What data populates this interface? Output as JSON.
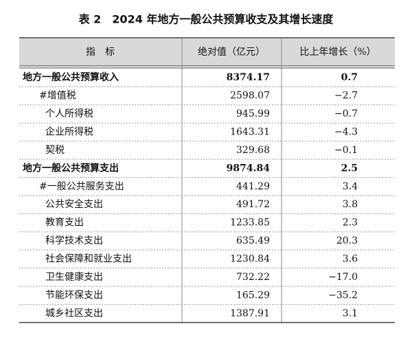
{
  "title": "表 2　2024 年地方一般公共预算收支及其增长速度",
  "table": {
    "header": [
      "指　标",
      "绝对值（亿元）",
      "比上年增长（%）"
    ],
    "sections": [
      {
        "label": "地方一般公共预算收入",
        "value": "8374.17",
        "growth": "0.7",
        "items": [
          {
            "label": "#增值税",
            "value": "2598.07",
            "growth": "−2.7"
          },
          {
            "label": "个人所得税",
            "value": "945.99",
            "growth": "−0.7"
          },
          {
            "label": "企业所得税",
            "value": "1643.31",
            "growth": "−4.3"
          },
          {
            "label": "契税",
            "value": "329.68",
            "growth": "−0.1"
          }
        ]
      },
      {
        "label": "地方一般公共预算支出",
        "value": "9874.84",
        "growth": "2.5",
        "items": [
          {
            "label": "#一般公共服务支出",
            "value": "441.29",
            "growth": "3.4"
          },
          {
            "label": "公共安全支出",
            "value": "491.72",
            "growth": "3.8"
          },
          {
            "label": "教育支出",
            "value": "1233.85",
            "growth": "2.3"
          },
          {
            "label": "科学技术支出",
            "value": "635.49",
            "growth": "20.3"
          },
          {
            "label": "社会保障和就业支出",
            "value": "1230.84",
            "growth": "3.6"
          },
          {
            "label": "卫生健康支出",
            "value": "732.22",
            "growth": "−17.0"
          },
          {
            "label": "节能环保支出",
            "value": "165.29",
            "growth": "−35.2"
          },
          {
            "label": "城乡社区支出",
            "value": "1387.91",
            "growth": "3.1"
          }
        ]
      }
    ]
  }
}
